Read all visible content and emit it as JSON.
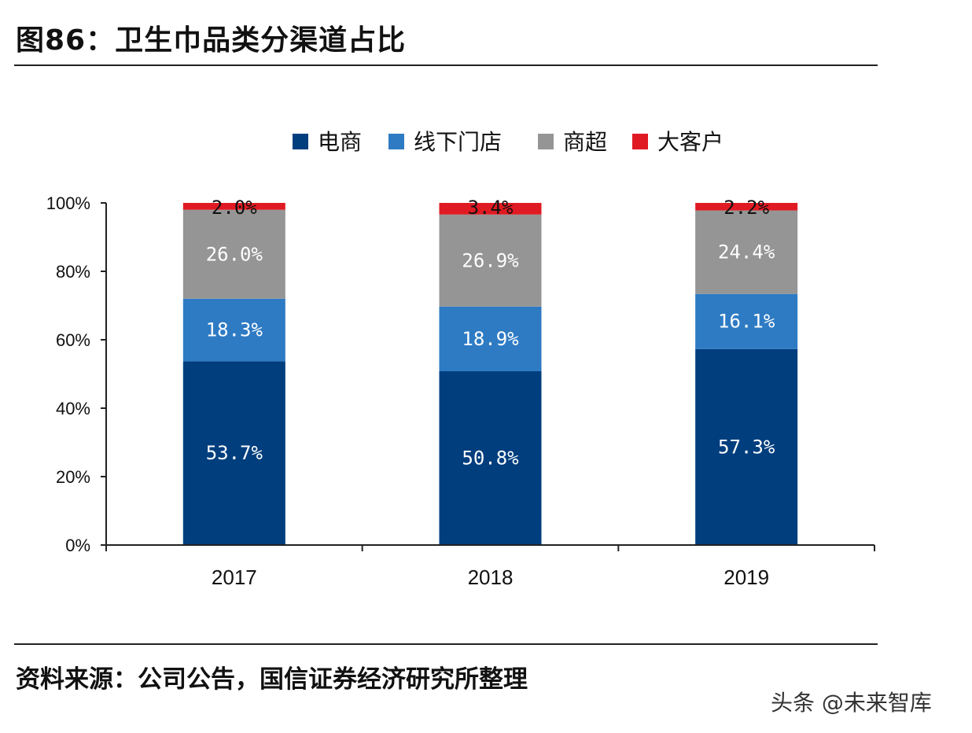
{
  "figure": {
    "title": "图86：卫生巾品类分渠道占比",
    "source": "资料来源：公司公告，国信证券经济研究所整理",
    "watermark": "头条 @未来智库"
  },
  "chart_data": {
    "type": "bar",
    "stacked": true,
    "categories": [
      "2017",
      "2018",
      "2019"
    ],
    "series": [
      {
        "name": "电商",
        "values": [
          53.7,
          50.8,
          57.3
        ],
        "labels": [
          "53.7%",
          "50.8%",
          "57.3%"
        ],
        "color": "#003e7e",
        "label_color": "#ffffff"
      },
      {
        "name": "线下门店",
        "values": [
          18.3,
          18.9,
          16.1
        ],
        "labels": [
          "18.3%",
          "18.9%",
          "16.1%"
        ],
        "color": "#2e7bc4",
        "label_color": "#ffffff"
      },
      {
        "name": "商超",
        "values": [
          26.0,
          26.9,
          24.4
        ],
        "labels": [
          "26.0%",
          "26.9%",
          "24.4%"
        ],
        "color": "#959595",
        "label_color": "#ffffff"
      },
      {
        "name": "大客户",
        "values": [
          2.0,
          3.4,
          2.2
        ],
        "labels": [
          "2.0%",
          "3.4%",
          "2.2%"
        ],
        "color": "#e01a22",
        "label_color": "#111111"
      }
    ],
    "yticks": [
      "0%",
      "20%",
      "40%",
      "60%",
      "80%",
      "100%"
    ],
    "ylim": [
      0,
      100
    ],
    "legend_position": "top",
    "grid": false
  }
}
